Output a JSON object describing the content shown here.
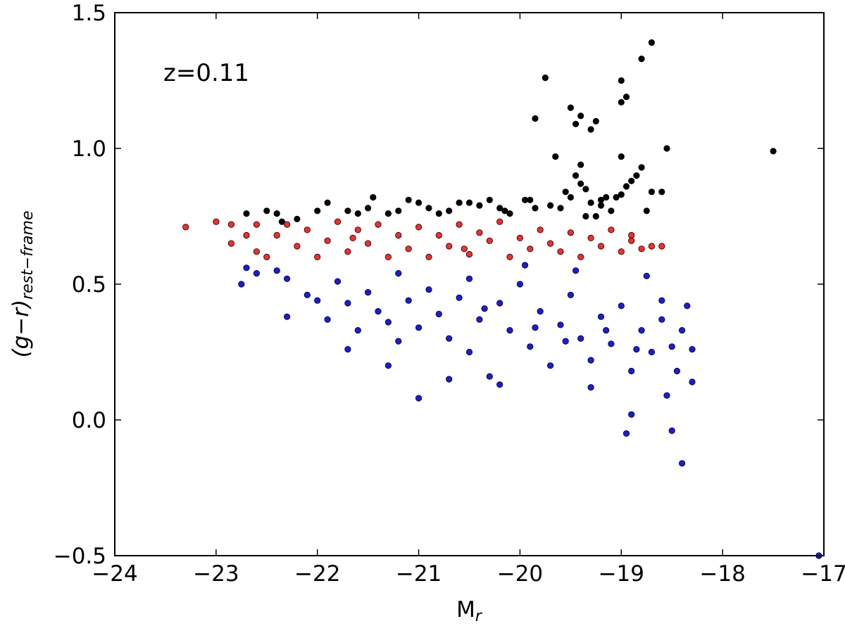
{
  "chart_data": {
    "type": "scatter",
    "annotation": "z=0.11",
    "xlabel": "M_r",
    "ylabel": "(g−r)_rest−frame",
    "xlim": [
      -24,
      -17
    ],
    "ylim": [
      -0.5,
      1.5
    ],
    "xticks": [
      -24,
      -23,
      -22,
      -21,
      -20,
      -19,
      -18,
      -17
    ],
    "xtick_labels": [
      "−24",
      "−23",
      "−22",
      "−21",
      "−20",
      "−19",
      "−18",
      "−17"
    ],
    "yticks": [
      -0.5,
      0.0,
      0.5,
      1.0,
      1.5
    ],
    "ytick_labels": [
      "−0.5",
      "0.0",
      "0.5",
      "1.0",
      "1.5"
    ],
    "grid": false,
    "series": [
      {
        "color": "#000000",
        "points": [
          [
            -22.7,
            0.76
          ],
          [
            -22.5,
            0.77
          ],
          [
            -22.4,
            0.76
          ],
          [
            -22.2,
            0.74
          ],
          [
            -22.0,
            0.77
          ],
          [
            -21.9,
            0.8
          ],
          [
            -21.7,
            0.77
          ],
          [
            -21.5,
            0.78
          ],
          [
            -21.45,
            0.82
          ],
          [
            -21.3,
            0.76
          ],
          [
            -21.1,
            0.81
          ],
          [
            -21.0,
            0.8
          ],
          [
            -20.9,
            0.78
          ],
          [
            -20.7,
            0.77
          ],
          [
            -20.5,
            0.8
          ],
          [
            -20.4,
            0.79
          ],
          [
            -20.3,
            0.81
          ],
          [
            -20.2,
            0.78
          ],
          [
            -20.1,
            0.76
          ],
          [
            -19.95,
            0.81
          ],
          [
            -19.85,
            0.78
          ],
          [
            -19.9,
            0.81
          ],
          [
            -19.7,
            0.79
          ],
          [
            -19.65,
            0.97
          ],
          [
            -19.5,
            0.82
          ],
          [
            -19.55,
            0.84
          ],
          [
            -19.4,
            0.87
          ],
          [
            -19.35,
            0.85
          ],
          [
            -19.2,
            0.81
          ],
          [
            -19.15,
            0.82
          ],
          [
            -19.0,
            0.97
          ],
          [
            -19.05,
            0.82
          ],
          [
            -18.9,
            0.88
          ],
          [
            -18.85,
            0.9
          ],
          [
            -18.8,
            0.93
          ],
          [
            -18.7,
            0.84
          ],
          [
            -18.6,
            0.84
          ],
          [
            -18.55,
            1.0
          ],
          [
            -18.75,
            0.77
          ],
          [
            -19.4,
            0.94
          ],
          [
            -19.45,
            0.9
          ],
          [
            -19.3,
            0.8
          ],
          [
            -19.2,
            0.79
          ],
          [
            -19.1,
            0.77
          ],
          [
            -19.0,
            0.83
          ],
          [
            -18.95,
            0.86
          ],
          [
            -19.85,
            1.11
          ],
          [
            -19.75,
            1.26
          ],
          [
            -19.5,
            1.15
          ],
          [
            -19.45,
            1.09
          ],
          [
            -19.4,
            1.12
          ],
          [
            -19.3,
            1.07
          ],
          [
            -19.25,
            1.1
          ],
          [
            -19.0,
            1.17
          ],
          [
            -18.95,
            1.19
          ],
          [
            -19.0,
            1.25
          ],
          [
            -18.8,
            1.33
          ],
          [
            -18.7,
            1.39
          ],
          [
            -17.5,
            0.99
          ],
          [
            -19.6,
            0.78
          ],
          [
            -19.35,
            0.75
          ],
          [
            -19.25,
            0.75
          ],
          [
            -20.6,
            0.8
          ],
          [
            -20.15,
            0.77
          ],
          [
            -21.6,
            0.76
          ],
          [
            -22.35,
            0.73
          ],
          [
            -21.2,
            0.77
          ],
          [
            -20.8,
            0.76
          ]
        ]
      },
      {
        "color": "#ff2a2a",
        "points": [
          [
            -23.3,
            0.71
          ],
          [
            -23.0,
            0.73
          ],
          [
            -22.85,
            0.72
          ],
          [
            -22.85,
            0.65
          ],
          [
            -22.6,
            0.72
          ],
          [
            -22.7,
            0.68
          ],
          [
            -22.5,
            0.6
          ],
          [
            -22.4,
            0.68
          ],
          [
            -22.3,
            0.72
          ],
          [
            -22.2,
            0.64
          ],
          [
            -22.1,
            0.7
          ],
          [
            -22.0,
            0.6
          ],
          [
            -21.9,
            0.66
          ],
          [
            -21.8,
            0.73
          ],
          [
            -21.7,
            0.62
          ],
          [
            -21.6,
            0.7
          ],
          [
            -21.5,
            0.65
          ],
          [
            -21.4,
            0.72
          ],
          [
            -21.3,
            0.6
          ],
          [
            -21.2,
            0.68
          ],
          [
            -21.1,
            0.63
          ],
          [
            -21.0,
            0.71
          ],
          [
            -20.9,
            0.6
          ],
          [
            -20.8,
            0.68
          ],
          [
            -20.7,
            0.64
          ],
          [
            -20.6,
            0.72
          ],
          [
            -20.5,
            0.61
          ],
          [
            -20.4,
            0.69
          ],
          [
            -20.3,
            0.66
          ],
          [
            -20.2,
            0.73
          ],
          [
            -20.1,
            0.6
          ],
          [
            -20.0,
            0.67
          ],
          [
            -19.9,
            0.63
          ],
          [
            -19.8,
            0.7
          ],
          [
            -19.7,
            0.65
          ],
          [
            -19.6,
            0.62
          ],
          [
            -19.5,
            0.69
          ],
          [
            -19.4,
            0.6
          ],
          [
            -19.3,
            0.67
          ],
          [
            -19.2,
            0.64
          ],
          [
            -19.1,
            0.7
          ],
          [
            -19.0,
            0.62
          ],
          [
            -18.9,
            0.66
          ],
          [
            -18.8,
            0.63
          ],
          [
            -18.7,
            0.64
          ],
          [
            -18.6,
            0.64
          ],
          [
            -18.9,
            0.68
          ],
          [
            -22.6,
            0.62
          ],
          [
            -21.65,
            0.67
          ],
          [
            -20.55,
            0.63
          ]
        ]
      },
      {
        "color": "#1a1ae6",
        "points": [
          [
            -22.75,
            0.5
          ],
          [
            -22.7,
            0.56
          ],
          [
            -22.6,
            0.54
          ],
          [
            -22.4,
            0.55
          ],
          [
            -22.3,
            0.52
          ],
          [
            -22.1,
            0.46
          ],
          [
            -21.9,
            0.37
          ],
          [
            -21.8,
            0.51
          ],
          [
            -21.7,
            0.43
          ],
          [
            -21.6,
            0.33
          ],
          [
            -21.5,
            0.47
          ],
          [
            -21.4,
            0.4
          ],
          [
            -21.3,
            0.36
          ],
          [
            -21.2,
            0.29
          ],
          [
            -21.1,
            0.44
          ],
          [
            -21.0,
            0.34
          ],
          [
            -20.9,
            0.48
          ],
          [
            -20.8,
            0.39
          ],
          [
            -20.7,
            0.3
          ],
          [
            -20.6,
            0.45
          ],
          [
            -20.5,
            0.25
          ],
          [
            -20.4,
            0.37
          ],
          [
            -20.3,
            0.16
          ],
          [
            -20.2,
            0.43
          ],
          [
            -20.1,
            0.33
          ],
          [
            -20.0,
            0.5
          ],
          [
            -19.9,
            0.27
          ],
          [
            -19.8,
            0.4
          ],
          [
            -19.7,
            0.2
          ],
          [
            -19.6,
            0.35
          ],
          [
            -19.5,
            0.46
          ],
          [
            -19.4,
            0.3
          ],
          [
            -19.3,
            0.22
          ],
          [
            -19.2,
            0.38
          ],
          [
            -19.1,
            0.28
          ],
          [
            -19.0,
            0.42
          ],
          [
            -18.9,
            0.18
          ],
          [
            -18.8,
            0.33
          ],
          [
            -18.7,
            0.25
          ],
          [
            -18.6,
            0.37
          ],
          [
            -18.5,
            0.27
          ],
          [
            -18.4,
            0.33
          ],
          [
            -18.35,
            0.42
          ],
          [
            -18.3,
            0.26
          ],
          [
            -18.3,
            0.14
          ],
          [
            -18.45,
            0.18
          ],
          [
            -18.55,
            0.09
          ],
          [
            -18.5,
            -0.04
          ],
          [
            -18.4,
            -0.16
          ],
          [
            -18.9,
            0.02
          ],
          [
            -18.95,
            -0.05
          ],
          [
            -19.3,
            0.12
          ],
          [
            -20.2,
            0.13
          ],
          [
            -20.7,
            0.15
          ],
          [
            -21.0,
            0.08
          ],
          [
            -21.3,
            0.2
          ],
          [
            -21.7,
            0.26
          ],
          [
            -22.3,
            0.38
          ],
          [
            -22.0,
            0.44
          ],
          [
            -21.2,
            0.54
          ],
          [
            -20.5,
            0.52
          ],
          [
            -19.95,
            0.57
          ],
          [
            -19.45,
            0.55
          ],
          [
            -18.75,
            0.53
          ],
          [
            -18.6,
            0.44
          ],
          [
            -19.15,
            0.33
          ],
          [
            -19.55,
            0.29
          ],
          [
            -18.85,
            0.26
          ],
          [
            -19.85,
            0.34
          ],
          [
            -20.35,
            0.41
          ],
          [
            -17.05,
            -0.5
          ]
        ]
      }
    ]
  }
}
